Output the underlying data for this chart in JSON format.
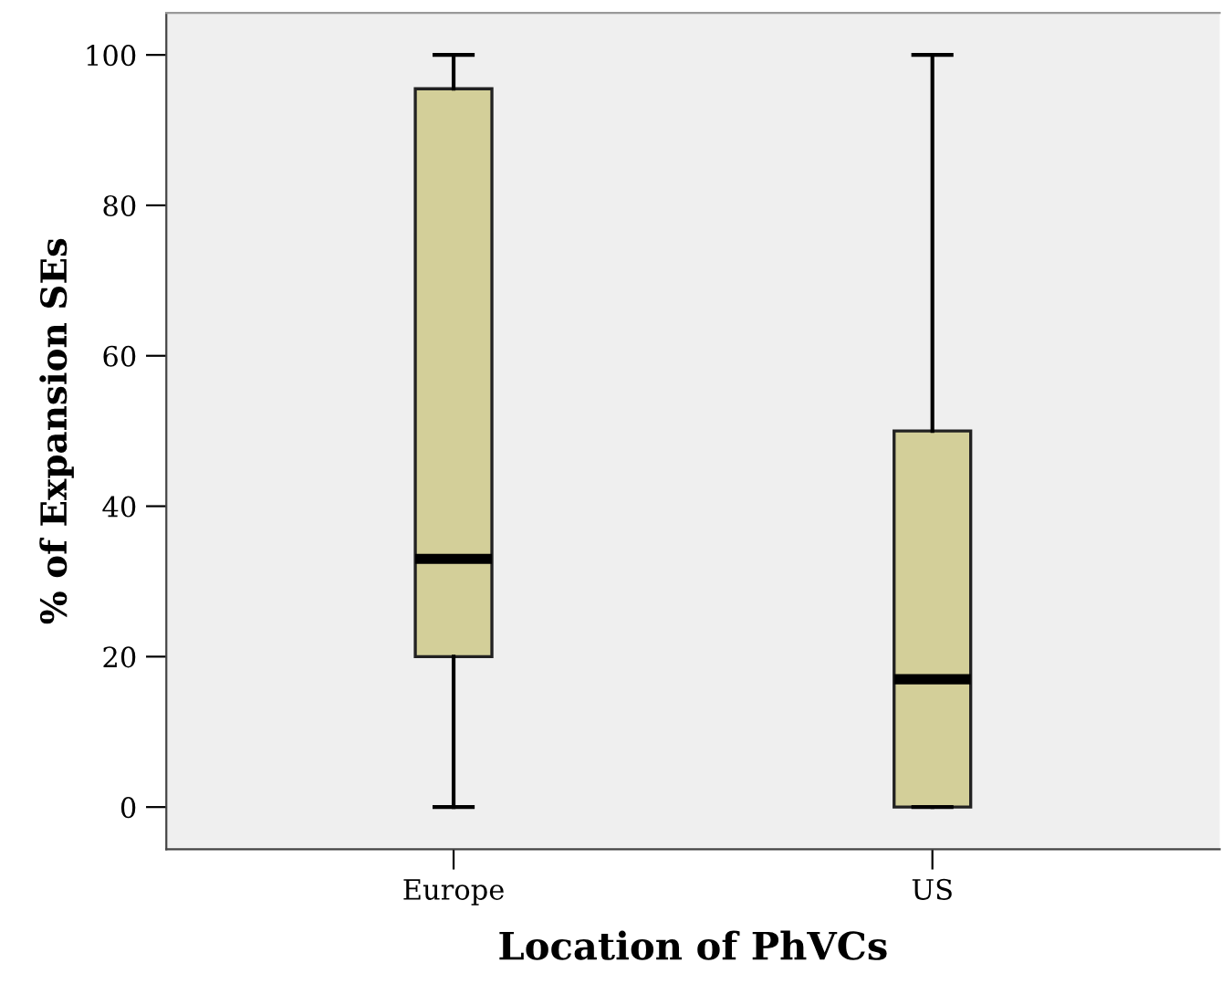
{
  "chart_data": {
    "type": "box",
    "xlabel": "Location of PhVCs",
    "ylabel": "% of Expansion SEs",
    "categories": [
      "Europe",
      "US"
    ],
    "boxes": [
      {
        "low": 0,
        "q1": 20,
        "median": 33,
        "q3": 95.5,
        "high": 100
      },
      {
        "low": 0,
        "q1": 0,
        "median": 17,
        "q3": 50,
        "high": 100
      }
    ],
    "color": "#d3cf99",
    "ylim": [
      -5.6,
      105.6
    ],
    "yticks": [
      0,
      20,
      40,
      60,
      80,
      100
    ],
    "grid": false,
    "legend": false
  }
}
